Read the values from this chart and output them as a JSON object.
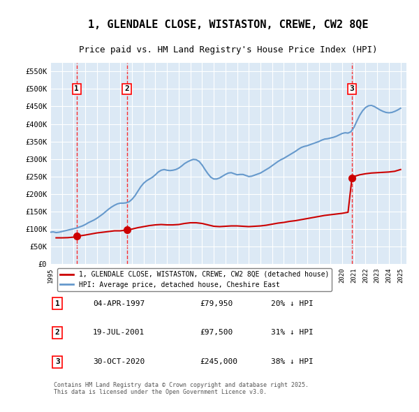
{
  "title": "1, GLENDALE CLOSE, WISTASTON, CREWE, CW2 8QE",
  "subtitle": "Price paid vs. HM Land Registry's House Price Index (HPI)",
  "background_color": "#dce9f5",
  "plot_bg_color": "#dce9f5",
  "xmin": 1995,
  "xmax": 2025.5,
  "ymin": 0,
  "ymax": 575000,
  "yticks": [
    0,
    50000,
    100000,
    150000,
    200000,
    250000,
    300000,
    350000,
    400000,
    450000,
    500000,
    550000
  ],
  "ytick_labels": [
    "£0",
    "£50K",
    "£100K",
    "£150K",
    "£200K",
    "£250K",
    "£300K",
    "£350K",
    "£400K",
    "£450K",
    "£500K",
    "£550K"
  ],
  "sale_color": "#cc0000",
  "hpi_color": "#6699cc",
  "sale_label": "1, GLENDALE CLOSE, WISTASTON, CREWE, CW2 8QE (detached house)",
  "hpi_label": "HPI: Average price, detached house, Cheshire East",
  "transactions": [
    {
      "num": 1,
      "date_x": 1997.26,
      "price": 79950,
      "label": "1",
      "pct": "20%",
      "dir": "↓"
    },
    {
      "num": 2,
      "date_x": 2001.55,
      "price": 97500,
      "label": "2",
      "pct": "31%",
      "dir": "↓"
    },
    {
      "num": 3,
      "date_x": 2020.83,
      "price": 245000,
      "label": "3",
      "pct": "38%",
      "dir": "↓"
    }
  ],
  "table_rows": [
    {
      "num": "1",
      "date": "04-APR-1997",
      "price": "£79,950",
      "pct": "20% ↓ HPI"
    },
    {
      "num": "2",
      "date": "19-JUL-2001",
      "price": "£97,500",
      "pct": "31% ↓ HPI"
    },
    {
      "num": "3",
      "date": "30-OCT-2020",
      "price": "£245,000",
      "pct": "38% ↓ HPI"
    }
  ],
  "footer": "Contains HM Land Registry data © Crown copyright and database right 2025.\nThis data is licensed under the Open Government Licence v3.0.",
  "hpi_data_x": [
    1995.0,
    1995.25,
    1995.5,
    1995.75,
    1996.0,
    1996.25,
    1996.5,
    1996.75,
    1997.0,
    1997.25,
    1997.5,
    1997.75,
    1998.0,
    1998.25,
    1998.5,
    1998.75,
    1999.0,
    1999.25,
    1999.5,
    1999.75,
    2000.0,
    2000.25,
    2000.5,
    2000.75,
    2001.0,
    2001.25,
    2001.5,
    2001.75,
    2002.0,
    2002.25,
    2002.5,
    2002.75,
    2003.0,
    2003.25,
    2003.5,
    2003.75,
    2004.0,
    2004.25,
    2004.5,
    2004.75,
    2005.0,
    2005.25,
    2005.5,
    2005.75,
    2006.0,
    2006.25,
    2006.5,
    2006.75,
    2007.0,
    2007.25,
    2007.5,
    2007.75,
    2008.0,
    2008.25,
    2008.5,
    2008.75,
    2009.0,
    2009.25,
    2009.5,
    2009.75,
    2010.0,
    2010.25,
    2010.5,
    2010.75,
    2011.0,
    2011.25,
    2011.5,
    2011.75,
    2012.0,
    2012.25,
    2012.5,
    2012.75,
    2013.0,
    2013.25,
    2013.5,
    2013.75,
    2014.0,
    2014.25,
    2014.5,
    2014.75,
    2015.0,
    2015.25,
    2015.5,
    2015.75,
    2016.0,
    2016.25,
    2016.5,
    2016.75,
    2017.0,
    2017.25,
    2017.5,
    2017.75,
    2018.0,
    2018.25,
    2018.5,
    2018.75,
    2019.0,
    2019.25,
    2019.5,
    2019.75,
    2020.0,
    2020.25,
    2020.5,
    2020.75,
    2021.0,
    2021.25,
    2021.5,
    2021.75,
    2022.0,
    2022.25,
    2022.5,
    2022.75,
    2023.0,
    2023.25,
    2023.5,
    2023.75,
    2024.0,
    2024.25,
    2024.5,
    2024.75,
    2025.0
  ],
  "hpi_data_y": [
    91000,
    92000,
    90000,
    91000,
    93000,
    95000,
    97000,
    99000,
    101000,
    103000,
    106000,
    109000,
    113000,
    118000,
    122000,
    126000,
    131000,
    137000,
    143000,
    150000,
    157000,
    163000,
    168000,
    172000,
    174000,
    174000,
    175000,
    178000,
    185000,
    195000,
    208000,
    221000,
    231000,
    238000,
    243000,
    248000,
    255000,
    263000,
    268000,
    270000,
    268000,
    267000,
    268000,
    270000,
    274000,
    280000,
    287000,
    292000,
    296000,
    299000,
    298000,
    293000,
    283000,
    270000,
    258000,
    248000,
    243000,
    243000,
    246000,
    251000,
    256000,
    260000,
    261000,
    258000,
    255000,
    256000,
    256000,
    253000,
    250000,
    251000,
    254000,
    257000,
    260000,
    265000,
    270000,
    275000,
    281000,
    287000,
    293000,
    298000,
    302000,
    307000,
    312000,
    317000,
    322000,
    328000,
    333000,
    336000,
    338000,
    341000,
    344000,
    347000,
    350000,
    354000,
    357000,
    358000,
    360000,
    362000,
    365000,
    369000,
    373000,
    375000,
    374000,
    378000,
    390000,
    408000,
    425000,
    438000,
    447000,
    452000,
    453000,
    450000,
    445000,
    440000,
    436000,
    433000,
    432000,
    433000,
    436000,
    440000,
    445000
  ],
  "sale_data_x": [
    1995.5,
    1996.0,
    1996.5,
    1997.0,
    1997.26,
    1997.5,
    1998.0,
    1998.5,
    1999.0,
    1999.5,
    2000.0,
    2000.5,
    2001.0,
    2001.55,
    2002.0,
    2002.5,
    2003.0,
    2003.5,
    2004.0,
    2004.5,
    2005.0,
    2005.5,
    2006.0,
    2006.5,
    2007.0,
    2007.5,
    2008.0,
    2008.5,
    2009.0,
    2009.5,
    2010.0,
    2010.5,
    2011.0,
    2011.5,
    2012.0,
    2012.5,
    2013.0,
    2013.5,
    2014.0,
    2014.5,
    2015.0,
    2015.5,
    2016.0,
    2016.5,
    2017.0,
    2017.5,
    2018.0,
    2018.5,
    2019.0,
    2019.5,
    2020.0,
    2020.5,
    2020.83,
    2021.0,
    2021.5,
    2022.0,
    2022.5,
    2023.0,
    2023.5,
    2024.0,
    2024.5,
    2025.0
  ],
  "sale_data_y": [
    75000,
    75000,
    75500,
    77000,
    79950,
    80500,
    83000,
    86000,
    89000,
    91000,
    93000,
    95000,
    95000,
    97500,
    100000,
    104000,
    107000,
    110000,
    112000,
    113000,
    112000,
    112000,
    113000,
    116000,
    118000,
    118000,
    116000,
    112000,
    108000,
    107000,
    108000,
    109000,
    109000,
    108000,
    107000,
    108000,
    109000,
    111000,
    114000,
    117000,
    119000,
    122000,
    124000,
    127000,
    130000,
    133000,
    136000,
    139000,
    141000,
    143000,
    145000,
    148000,
    245000,
    250000,
    255000,
    258000,
    260000,
    261000,
    262000,
    263000,
    265000,
    270000
  ]
}
